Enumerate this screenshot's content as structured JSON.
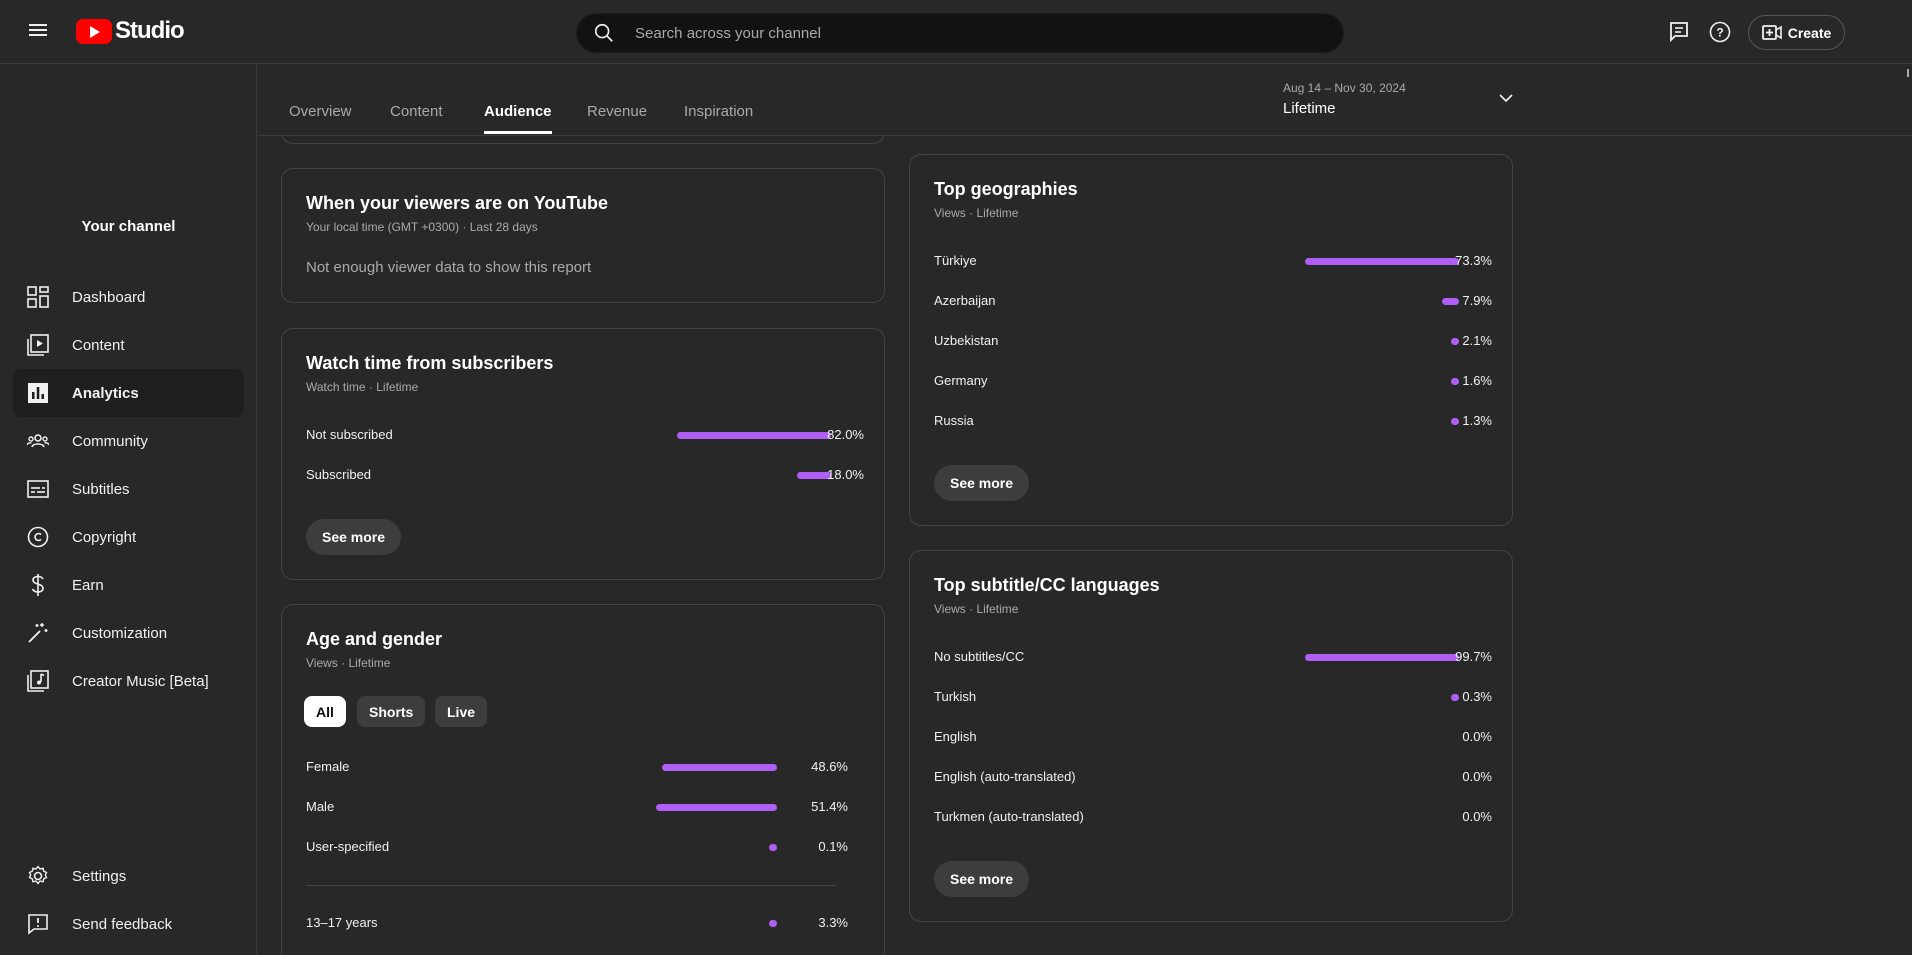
{
  "header": {
    "logo_text": "Studio",
    "search_placeholder": "Search across your channel",
    "create_label": "Create"
  },
  "sidebar": {
    "channel_label": "Your channel",
    "items": [
      {
        "label": "Dashboard",
        "icon": "dashboard-icon"
      },
      {
        "label": "Content",
        "icon": "content-icon"
      },
      {
        "label": "Analytics",
        "icon": "analytics-icon",
        "active": true
      },
      {
        "label": "Community",
        "icon": "community-icon"
      },
      {
        "label": "Subtitles",
        "icon": "subtitles-icon"
      },
      {
        "label": "Copyright",
        "icon": "copyright-icon"
      },
      {
        "label": "Earn",
        "icon": "dollar-icon"
      },
      {
        "label": "Customization",
        "icon": "magic-wand-icon"
      },
      {
        "label": "Creator Music [Beta]",
        "icon": "music-icon"
      }
    ],
    "bottom": [
      {
        "label": "Settings",
        "icon": "gear-icon"
      },
      {
        "label": "Send feedback",
        "icon": "feedback-icon"
      }
    ]
  },
  "tabs": [
    {
      "label": "Overview"
    },
    {
      "label": "Content"
    },
    {
      "label": "Audience",
      "active": true
    },
    {
      "label": "Revenue"
    },
    {
      "label": "Inspiration"
    }
  ],
  "date_range": {
    "range": "Aug 14 – Nov 30, 2024",
    "label": "Lifetime"
  },
  "viewers_card": {
    "title": "When your viewers are on YouTube",
    "subtitle": "Your local time (GMT +0300) · Last 28 days",
    "message": "Not enough viewer data to show this report"
  },
  "subscribers_card": {
    "title": "Watch time from subscribers",
    "subtitle": "Watch time · Lifetime",
    "rows": [
      {
        "label": "Not subscribed",
        "value": 82.0,
        "display": "82.0%"
      },
      {
        "label": "Subscribed",
        "value": 18.0,
        "display": "18.0%"
      }
    ],
    "see_more": "See more"
  },
  "age_gender_card": {
    "title": "Age and gender",
    "subtitle": "Views · Lifetime",
    "chips": [
      {
        "label": "All",
        "active": true
      },
      {
        "label": "Shorts"
      },
      {
        "label": "Live"
      }
    ],
    "gender_rows": [
      {
        "label": "Female",
        "value": 48.6,
        "display": "48.6%"
      },
      {
        "label": "Male",
        "value": 51.4,
        "display": "51.4%"
      },
      {
        "label": "User-specified",
        "value": 0.1,
        "display": "0.1%"
      }
    ],
    "age_rows": [
      {
        "label": "13–17 years",
        "value": 3.3,
        "display": "3.3%"
      }
    ]
  },
  "geographies_card": {
    "title": "Top geographies",
    "subtitle": "Views · Lifetime",
    "rows": [
      {
        "label": "Türkiye",
        "value": 73.3,
        "display": "73.3%"
      },
      {
        "label": "Azerbaijan",
        "value": 7.9,
        "display": "7.9%"
      },
      {
        "label": "Uzbekistan",
        "value": 2.1,
        "display": "2.1%"
      },
      {
        "label": "Germany",
        "value": 1.6,
        "display": "1.6%"
      },
      {
        "label": "Russia",
        "value": 1.3,
        "display": "1.3%"
      }
    ],
    "see_more": "See more"
  },
  "subtitles_card": {
    "title": "Top subtitle/CC languages",
    "subtitle": "Views · Lifetime",
    "rows": [
      {
        "label": "No subtitles/CC",
        "value": 99.7,
        "display": "99.7%"
      },
      {
        "label": "Turkish",
        "value": 0.3,
        "display": "0.3%"
      },
      {
        "label": "English",
        "value": 0.0,
        "display": "0.0%"
      },
      {
        "label": "English (auto-translated)",
        "value": 0.0,
        "display": "0.0%"
      },
      {
        "label": "Turkmen (auto-translated)",
        "value": 0.0,
        "display": "0.0%"
      }
    ],
    "see_more": "See more"
  },
  "colors": {
    "accent_bar": "#b05ff5",
    "brand_red": "#ff0000",
    "background": "#282828"
  }
}
